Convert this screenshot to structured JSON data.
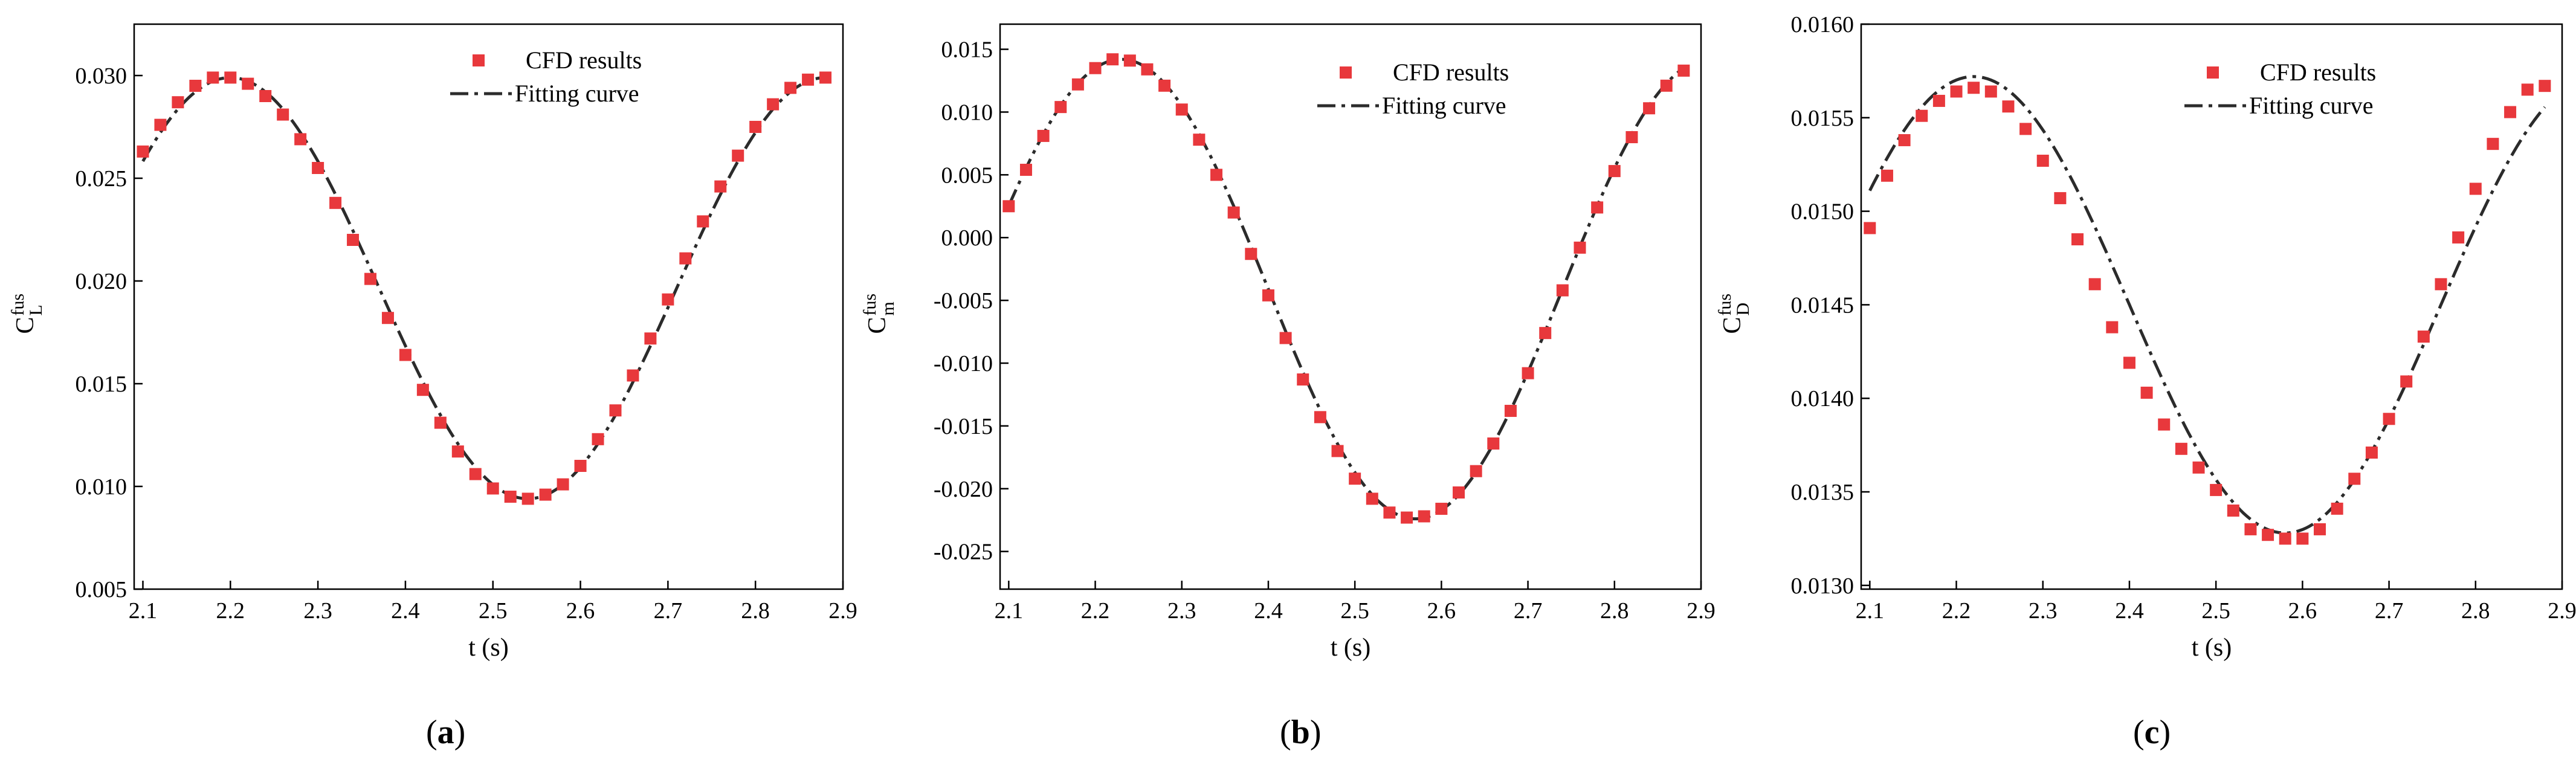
{
  "chart_data": [
    {
      "type": "scatter",
      "panel_label": "(a)",
      "ylabel_main": "C",
      "ylabel_sup": "fus",
      "ylabel_sub": "L",
      "xlabel": "t (s)",
      "xlim": [
        2.09,
        2.9
      ],
      "ylim": [
        0.005,
        0.0325
      ],
      "xticks": [
        2.1,
        2.2,
        2.3,
        2.4,
        2.5,
        2.6,
        2.7,
        2.8,
        2.9
      ],
      "xtick_labels": [
        "2.1",
        "2.2",
        "2.3",
        "2.4",
        "2.5",
        "2.6",
        "2.7",
        "2.8",
        "2.9"
      ],
      "yticks": [
        0.005,
        0.01,
        0.015,
        0.02,
        0.025,
        0.03
      ],
      "ytick_labels": [
        "0.005",
        "0.010",
        "0.015",
        "0.020",
        "0.025",
        "0.030"
      ],
      "legend": [
        "CFD results",
        "Fitting curve"
      ],
      "series": [
        {
          "name": "CFD results",
          "style": "square-markers",
          "color": "#e8383c",
          "x": [
            2.1,
            2.12,
            2.14,
            2.16,
            2.18,
            2.2,
            2.22,
            2.24,
            2.26,
            2.28,
            2.3,
            2.32,
            2.34,
            2.36,
            2.38,
            2.4,
            2.42,
            2.44,
            2.46,
            2.48,
            2.5,
            2.52,
            2.54,
            2.56,
            2.58,
            2.6,
            2.62,
            2.64,
            2.66,
            2.68,
            2.7,
            2.72,
            2.74,
            2.76,
            2.78,
            2.8,
            2.82,
            2.84,
            2.86,
            2.88
          ],
          "y": [
            0.0263,
            0.0276,
            0.0287,
            0.0295,
            0.0299,
            0.0299,
            0.0296,
            0.029,
            0.0281,
            0.0269,
            0.0255,
            0.0238,
            0.022,
            0.0201,
            0.0182,
            0.0164,
            0.0147,
            0.0131,
            0.0117,
            0.0106,
            0.0099,
            0.0095,
            0.0094,
            0.0096,
            0.0101,
            0.011,
            0.0123,
            0.0137,
            0.0154,
            0.0172,
            0.0191,
            0.0211,
            0.0229,
            0.0246,
            0.0261,
            0.0275,
            0.0286,
            0.0294,
            0.0298,
            0.0299
          ]
        },
        {
          "name": "Fitting curve",
          "style": "dash-dot",
          "color": "#2b2b2b",
          "fit": {
            "mean": 0.01965,
            "amp": 0.01025,
            "t0": 2.2,
            "period": 0.68
          }
        }
      ]
    },
    {
      "type": "scatter",
      "panel_label": "(b)",
      "ylabel_main": "C",
      "ylabel_sup": "fus",
      "ylabel_sub": "m",
      "xlabel": "t (s)",
      "xlim": [
        2.09,
        2.9
      ],
      "ylim": [
        -0.028,
        0.017
      ],
      "xticks": [
        2.1,
        2.2,
        2.3,
        2.4,
        2.5,
        2.6,
        2.7,
        2.8,
        2.9
      ],
      "xtick_labels": [
        "2.1",
        "2.2",
        "2.3",
        "2.4",
        "2.5",
        "2.6",
        "2.7",
        "2.8",
        "2.9"
      ],
      "yticks": [
        -0.025,
        -0.02,
        -0.015,
        -0.01,
        -0.005,
        0.0,
        0.005,
        0.01,
        0.015
      ],
      "ytick_labels": [
        "-0.025",
        "-0.020",
        "-0.015",
        "-0.010",
        "-0.005",
        "0.000",
        "0.005",
        "0.010",
        "0.015"
      ],
      "legend": [
        "CFD results",
        "Fitting curve"
      ],
      "series": [
        {
          "name": "CFD results",
          "style": "square-markers",
          "color": "#e8383c",
          "x": [
            2.1,
            2.12,
            2.14,
            2.16,
            2.18,
            2.2,
            2.22,
            2.24,
            2.26,
            2.28,
            2.3,
            2.32,
            2.34,
            2.36,
            2.38,
            2.4,
            2.42,
            2.44,
            2.46,
            2.48,
            2.5,
            2.52,
            2.54,
            2.56,
            2.58,
            2.6,
            2.62,
            2.64,
            2.66,
            2.68,
            2.7,
            2.72,
            2.74,
            2.76,
            2.78,
            2.8,
            2.82,
            2.84,
            2.86,
            2.88
          ],
          "y": [
            0.0025,
            0.0054,
            0.0081,
            0.0104,
            0.0122,
            0.0135,
            0.0142,
            0.0141,
            0.0134,
            0.0121,
            0.0102,
            0.0078,
            0.005,
            0.002,
            -0.0013,
            -0.0046,
            -0.008,
            -0.0113,
            -0.0143,
            -0.017,
            -0.0192,
            -0.0208,
            -0.0219,
            -0.0223,
            -0.0222,
            -0.0216,
            -0.0203,
            -0.0186,
            -0.0164,
            -0.0138,
            -0.0108,
            -0.0076,
            -0.0042,
            -0.0008,
            0.0024,
            0.0053,
            0.008,
            0.0103,
            0.0121,
            0.0133
          ]
        },
        {
          "name": "Fitting curve",
          "style": "dash-dot",
          "color": "#2b2b2b",
          "fit": {
            "mean": -0.0041,
            "amp": 0.0183,
            "t0": 2.23,
            "period": 0.68
          }
        }
      ]
    },
    {
      "type": "scatter",
      "panel_label": "(c)",
      "ylabel_main": "C",
      "ylabel_sup": "fus",
      "ylabel_sub": "D",
      "xlabel": "t (s)",
      "xlim": [
        2.09,
        2.9
      ],
      "ylim": [
        0.01298,
        0.016
      ],
      "xticks": [
        2.1,
        2.2,
        2.3,
        2.4,
        2.5,
        2.6,
        2.7,
        2.8,
        2.9
      ],
      "xtick_labels": [
        "2.1",
        "2.2",
        "2.3",
        "2.4",
        "2.5",
        "2.6",
        "2.7",
        "2.8",
        "2.9"
      ],
      "yticks": [
        0.013,
        0.0135,
        0.014,
        0.0145,
        0.015,
        0.0155,
        0.016
      ],
      "ytick_labels": [
        "0.0130",
        "0.0135",
        "0.0140",
        "0.0145",
        "0.0150",
        "0.0155",
        "0.0160"
      ],
      "legend": [
        "CFD results",
        "Fitting curve"
      ],
      "series": [
        {
          "name": "CFD results",
          "style": "square-markers",
          "color": "#e8383c",
          "x": [
            2.1,
            2.12,
            2.14,
            2.16,
            2.18,
            2.2,
            2.22,
            2.24,
            2.26,
            2.28,
            2.3,
            2.32,
            2.34,
            2.36,
            2.38,
            2.4,
            2.42,
            2.44,
            2.46,
            2.48,
            2.5,
            2.52,
            2.54,
            2.56,
            2.58,
            2.6,
            2.62,
            2.64,
            2.66,
            2.68,
            2.7,
            2.72,
            2.74,
            2.76,
            2.78,
            2.8,
            2.82,
            2.84,
            2.86,
            2.88
          ],
          "y": [
            0.01491,
            0.01519,
            0.01538,
            0.01551,
            0.01559,
            0.01564,
            0.01566,
            0.01564,
            0.01556,
            0.01544,
            0.01527,
            0.01507,
            0.01485,
            0.01461,
            0.01438,
            0.01419,
            0.01403,
            0.01386,
            0.01373,
            0.01363,
            0.01351,
            0.0134,
            0.0133,
            0.01327,
            0.01325,
            0.01325,
            0.0133,
            0.01341,
            0.01357,
            0.01371,
            0.01389,
            0.01409,
            0.01433,
            0.01461,
            0.01486,
            0.01512,
            0.01536,
            0.01553,
            0.01565,
            0.01567
          ]
        },
        {
          "name": "Fitting curve",
          "style": "dash-dot",
          "color": "#2b2b2b",
          "fit": {
            "mean": 0.0145,
            "amp": 0.00122,
            "t0": 2.22,
            "period": 0.72
          }
        }
      ]
    }
  ]
}
